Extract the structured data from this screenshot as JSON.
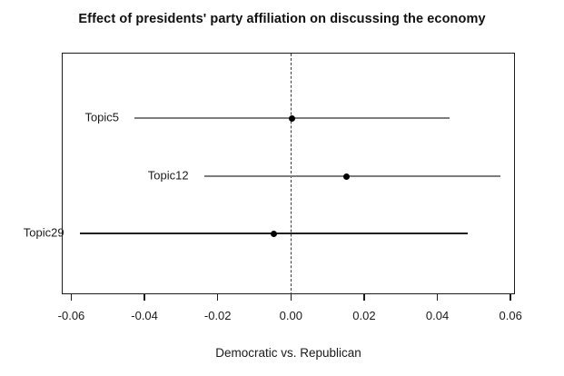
{
  "chart_data": {
    "type": "dot-whisker",
    "title": "Effect of presidents' party affiliation on discussing the economy",
    "xlabel": "Democratic vs. Republican",
    "xlim": [
      -0.0626,
      0.0612
    ],
    "grid": false,
    "legend": "none",
    "reference_line": {
      "x": 0,
      "style": "dashed",
      "color": "#3a3a3a"
    },
    "point_color": "#000000",
    "x_ticks": [
      {
        "value": -0.06,
        "label": "-0.06"
      },
      {
        "value": -0.04,
        "label": "-0.04"
      },
      {
        "value": -0.02,
        "label": "-0.02"
      },
      {
        "value": 0.0,
        "label": "0.00"
      },
      {
        "value": 0.02,
        "label": "0.02"
      },
      {
        "value": 0.04,
        "label": "0.04"
      },
      {
        "value": 0.06,
        "label": "0.06"
      }
    ],
    "rows": [
      {
        "label": "Topic5",
        "estimate": 0.0,
        "ci_low": -0.043,
        "ci_high": 0.043,
        "line_color": "#7d7d7d"
      },
      {
        "label": "Topic12",
        "estimate": 0.015,
        "ci_low": -0.024,
        "ci_high": 0.057,
        "line_color": "#7d7d7d"
      },
      {
        "label": "Topic29",
        "estimate": -0.005,
        "ci_low": -0.058,
        "ci_high": 0.048,
        "line_color": "#1f1f1f"
      }
    ]
  }
}
